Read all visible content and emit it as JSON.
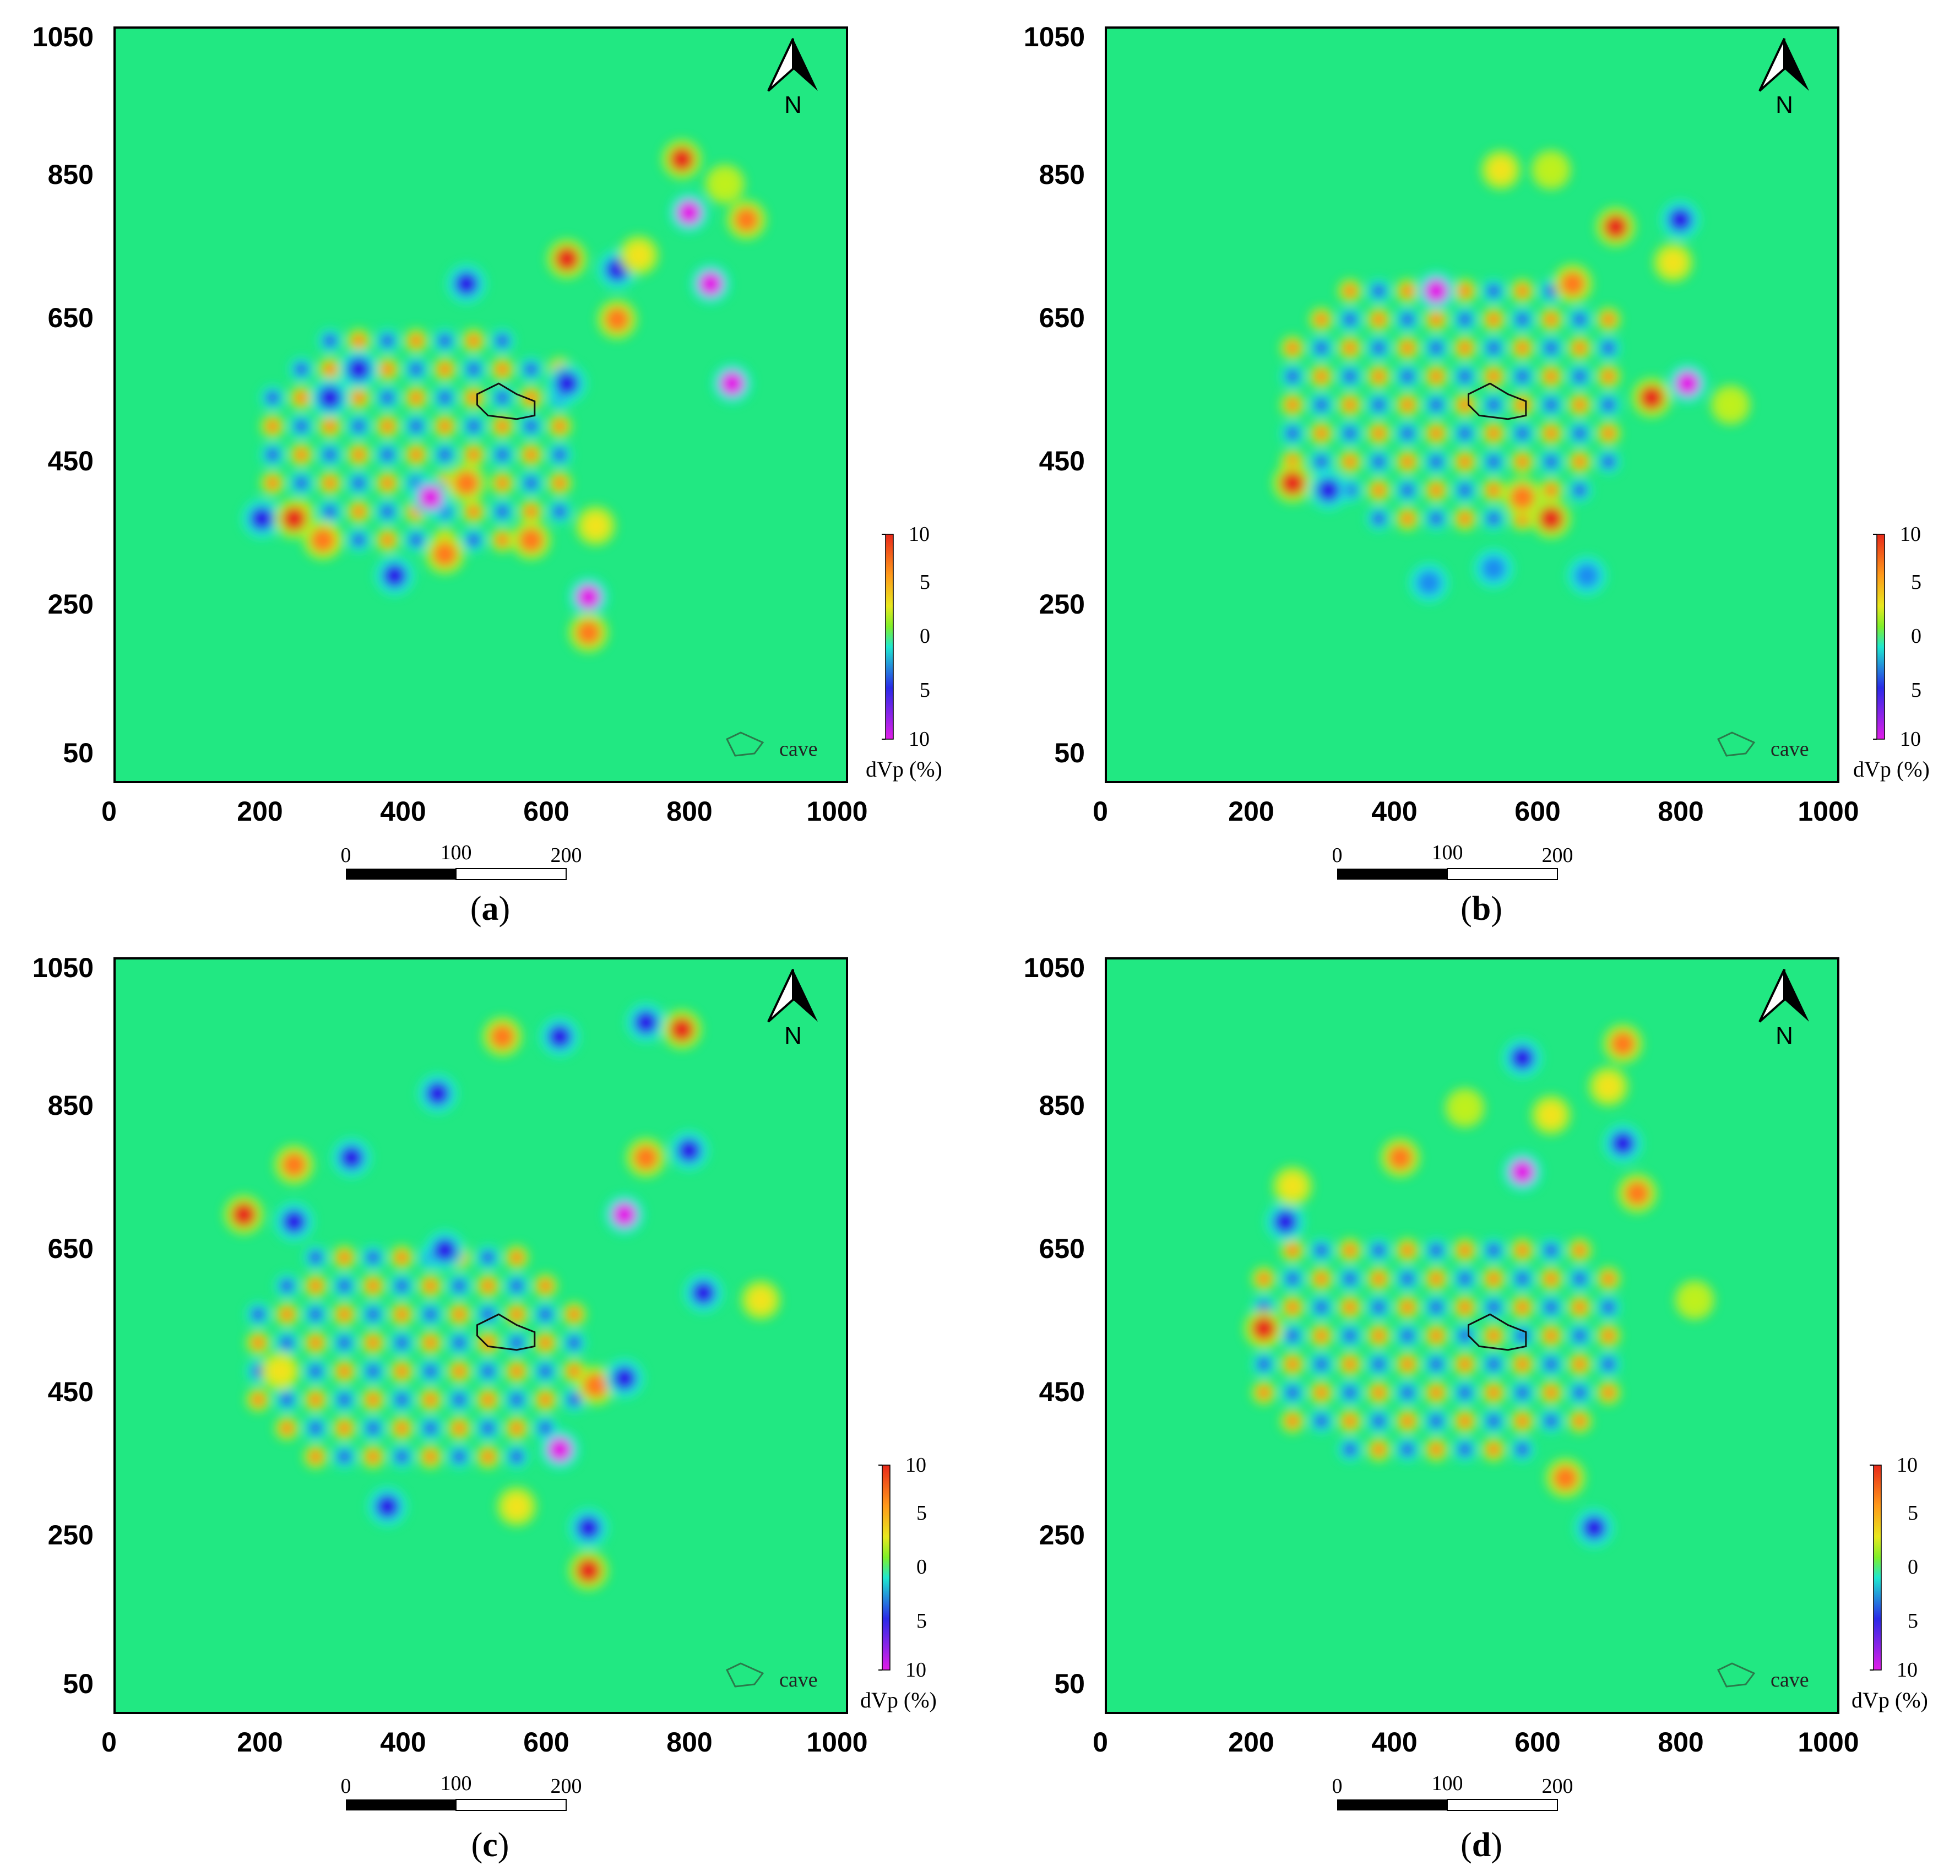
{
  "figure": {
    "x_ticks": [
      "0",
      "200",
      "400",
      "600",
      "800",
      "1000"
    ],
    "y_ticks": [
      "1050",
      "850",
      "650",
      "450",
      "250",
      "50"
    ],
    "colorbar_labels": [
      "10",
      "5",
      "0",
      "5",
      "10"
    ],
    "colorbar_title": "dVp (%)",
    "legend_label": "cave",
    "north_label": "N",
    "scalebar_labels": [
      "0",
      "100",
      "200"
    ],
    "colors": {
      "background": "#21e882",
      "max": "#e8291a",
      "min": "#e11ee8"
    }
  },
  "chart_data": [
    {
      "type": "heatmap",
      "panel": "(a)",
      "x_ticks": [
        0,
        200,
        400,
        600,
        800,
        1000
      ],
      "y_ticks": [
        50,
        250,
        450,
        650,
        850,
        1050
      ],
      "xlim": [
        0,
        1020
      ],
      "ylim": [
        0,
        1060
      ],
      "colorbar": {
        "title": "dVp (%)",
        "range": [
          -10,
          10
        ],
        "tick_labels": [
          "10",
          "5",
          "0",
          "5",
          "10"
        ]
      },
      "legend": [
        "cave"
      ],
      "scale_bar": [
        "0",
        "100",
        "200"
      ],
      "anomalies": [
        [
          790,
          875,
          9
        ],
        [
          800,
          800,
          -10
        ],
        [
          880,
          790,
          8
        ],
        [
          830,
          700,
          -9
        ],
        [
          700,
          720,
          -8
        ],
        [
          630,
          735,
          9
        ],
        [
          700,
          650,
          8
        ],
        [
          490,
          700,
          -8
        ],
        [
          860,
          560,
          -10
        ],
        [
          340,
          580,
          -7
        ],
        [
          300,
          540,
          -7
        ],
        [
          630,
          560,
          -6
        ],
        [
          440,
          400,
          -10
        ],
        [
          390,
          290,
          -6
        ],
        [
          460,
          320,
          7
        ],
        [
          580,
          340,
          7
        ],
        [
          670,
          360,
          6
        ],
        [
          660,
          260,
          -9
        ],
        [
          660,
          210,
          8
        ],
        [
          205,
          370,
          -8
        ],
        [
          250,
          370,
          9
        ],
        [
          290,
          340,
          7
        ],
        [
          490,
          420,
          8
        ],
        [
          730,
          740,
          6
        ],
        [
          850,
          840,
          4
        ]
      ],
      "grid": {
        "x_start": 220,
        "x_end": 640,
        "x_step": 40,
        "y_start": 340,
        "y_end": 620,
        "y_step": 40
      },
      "cave_outline": [
        [
          505,
          545
        ],
        [
          535,
          560
        ],
        [
          560,
          545
        ],
        [
          585,
          535
        ],
        [
          585,
          515
        ],
        [
          560,
          510
        ],
        [
          520,
          515
        ],
        [
          505,
          530
        ]
      ]
    },
    {
      "type": "heatmap",
      "panel": "(b)",
      "x_ticks": [
        0,
        200,
        400,
        600,
        800,
        1000
      ],
      "y_ticks": [
        50,
        250,
        450,
        650,
        850,
        1050
      ],
      "xlim": [
        0,
        1020
      ],
      "ylim": [
        0,
        1060
      ],
      "colorbar": {
        "title": "dVp (%)",
        "range": [
          -10,
          10
        ],
        "tick_labels": [
          "10",
          "5",
          "0",
          "5",
          "10"
        ]
      },
      "legend": [
        "cave"
      ],
      "scale_bar": [
        "0",
        "100",
        "200"
      ],
      "anomalies": [
        [
          460,
          690,
          -9
        ],
        [
          710,
          780,
          9
        ],
        [
          800,
          790,
          -6
        ],
        [
          810,
          560,
          -9
        ],
        [
          760,
          540,
          9
        ],
        [
          260,
          420,
          10
        ],
        [
          310,
          410,
          -8
        ],
        [
          620,
          370,
          9
        ],
        [
          580,
          400,
          8
        ],
        [
          670,
          290,
          -5
        ],
        [
          450,
          280,
          -5
        ],
        [
          540,
          300,
          -4
        ],
        [
          550,
          860,
          5
        ],
        [
          620,
          860,
          4
        ],
        [
          870,
          530,
          4
        ],
        [
          650,
          700,
          7
        ],
        [
          790,
          730,
          5
        ]
      ],
      "grid": {
        "x_start": 260,
        "x_end": 720,
        "x_step": 40,
        "y_start": 370,
        "y_end": 700,
        "y_step": 40
      },
      "cave_outline": [
        [
          505,
          545
        ],
        [
          535,
          560
        ],
        [
          560,
          545
        ],
        [
          585,
          535
        ],
        [
          585,
          515
        ],
        [
          560,
          510
        ],
        [
          520,
          515
        ],
        [
          505,
          530
        ]
      ]
    },
    {
      "type": "heatmap",
      "panel": "(c)",
      "x_ticks": [
        0,
        200,
        400,
        600,
        800,
        1000
      ],
      "y_ticks": [
        50,
        250,
        450,
        650,
        850,
        1050
      ],
      "xlim": [
        0,
        1020
      ],
      "ylim": [
        0,
        1060
      ],
      "colorbar": {
        "title": "dVp (%)",
        "range": [
          -10,
          10
        ],
        "tick_labels": [
          "10",
          "5",
          "0",
          "5",
          "10"
        ]
      },
      "legend": [
        "cave"
      ],
      "scale_bar": [
        "0",
        "100",
        "200"
      ],
      "anomalies": [
        [
          180,
          700,
          10
        ],
        [
          250,
          690,
          -8
        ],
        [
          250,
          770,
          8
        ],
        [
          330,
          780,
          -7
        ],
        [
          450,
          870,
          -8
        ],
        [
          540,
          950,
          8
        ],
        [
          620,
          950,
          -7
        ],
        [
          740,
          970,
          -8
        ],
        [
          790,
          960,
          9
        ],
        [
          800,
          790,
          -8
        ],
        [
          740,
          780,
          7
        ],
        [
          710,
          700,
          -9
        ],
        [
          820,
          590,
          -8
        ],
        [
          900,
          580,
          6
        ],
        [
          460,
          650,
          -8
        ],
        [
          620,
          370,
          -10
        ],
        [
          670,
          460,
          8
        ],
        [
          710,
          470,
          -7
        ],
        [
          660,
          260,
          -8
        ],
        [
          660,
          200,
          9
        ],
        [
          380,
          290,
          -6
        ],
        [
          560,
          290,
          5
        ],
        [
          230,
          480,
          6
        ]
      ],
      "grid": {
        "x_start": 200,
        "x_end": 640,
        "x_step": 40,
        "y_start": 360,
        "y_end": 640,
        "y_step": 40
      },
      "cave_outline": [
        [
          505,
          545
        ],
        [
          535,
          560
        ],
        [
          560,
          545
        ],
        [
          585,
          535
        ],
        [
          585,
          515
        ],
        [
          560,
          510
        ],
        [
          520,
          515
        ],
        [
          505,
          530
        ]
      ]
    },
    {
      "type": "heatmap",
      "panel": "(d)",
      "x_ticks": [
        0,
        200,
        400,
        600,
        800,
        1000
      ],
      "y_ticks": [
        50,
        250,
        450,
        650,
        850,
        1050
      ],
      "xlim": [
        0,
        1020
      ],
      "ylim": [
        0,
        1060
      ],
      "colorbar": {
        "title": "dVp (%)",
        "range": [
          -10,
          10
        ],
        "tick_labels": [
          "10",
          "5",
          "0",
          "5",
          "10"
        ]
      },
      "legend": [
        "cave"
      ],
      "scale_bar": [
        "0",
        "100",
        "200"
      ],
      "anomalies": [
        [
          220,
          540,
          10
        ],
        [
          720,
          940,
          8
        ],
        [
          700,
          880,
          6
        ],
        [
          580,
          920,
          -6
        ],
        [
          580,
          760,
          -10
        ],
        [
          410,
          780,
          7
        ],
        [
          250,
          690,
          -8
        ],
        [
          260,
          740,
          6
        ],
        [
          640,
          330,
          8
        ],
        [
          680,
          260,
          -6
        ],
        [
          740,
          730,
          7
        ],
        [
          720,
          800,
          -7
        ],
        [
          620,
          840,
          5
        ],
        [
          820,
          580,
          4
        ],
        [
          500,
          850,
          4
        ]
      ],
      "grid": {
        "x_start": 220,
        "x_end": 700,
        "x_step": 40,
        "y_start": 370,
        "y_end": 680,
        "y_step": 40
      },
      "cave_outline": [
        [
          505,
          545
        ],
        [
          535,
          560
        ],
        [
          560,
          545
        ],
        [
          585,
          535
        ],
        [
          585,
          515
        ],
        [
          560,
          510
        ],
        [
          520,
          515
        ],
        [
          505,
          530
        ]
      ]
    }
  ],
  "captions": {
    "a": {
      "open": "(",
      "letter": "a",
      "close": ")"
    },
    "b": {
      "open": "(",
      "letter": "b",
      "close": ")"
    },
    "c": {
      "open": "(",
      "letter": "c",
      "close": ")"
    },
    "d": {
      "open": "(",
      "letter": "d",
      "close": ")"
    }
  }
}
